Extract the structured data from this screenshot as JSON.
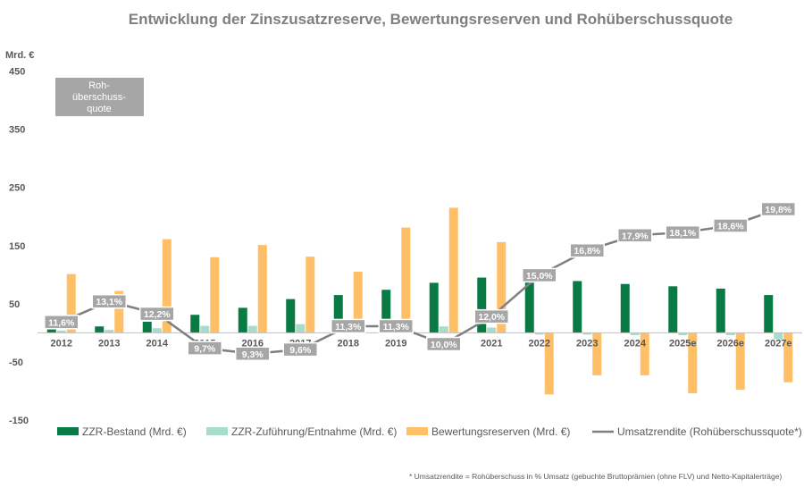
{
  "chart_data": {
    "type": "bar",
    "title": "Entwicklung der Zinszusatzreserve, Bewertungsreserven und Rohüberschussquote",
    "y_unit": "Mrd. €",
    "ylim": [
      -150,
      480
    ],
    "yticks": [
      -150,
      -50,
      50,
      150,
      250,
      350,
      450
    ],
    "categories": [
      "2012",
      "2013",
      "2014",
      "2015",
      "2016",
      "2017",
      "2018",
      "2019",
      "2020",
      "2021",
      "2022",
      "2023",
      "2024",
      "2025e",
      "2026e",
      "2027e"
    ],
    "series": [
      {
        "name": "ZZR-Bestand (Mrd. €)",
        "kind": "bar",
        "color": "#0a7a45",
        "values": [
          6,
          11,
          19,
          31,
          43,
          58,
          65,
          74,
          86,
          95,
          92,
          89,
          84,
          80,
          76,
          65
        ]
      },
      {
        "name": "ZZR-Zuführung/Entnahme (Mrd. €)",
        "kind": "bar",
        "color": "#a6dcc9",
        "values": [
          4,
          5,
          8,
          12,
          12,
          15,
          7,
          9,
          11,
          9,
          -3,
          -3,
          -4,
          -4,
          -4,
          -11
        ]
      },
      {
        "name": "Bewertungsreserven (Mrd. €)",
        "kind": "bar",
        "color": "#ffbf66",
        "values": [
          101,
          72,
          161,
          130,
          151,
          131,
          105,
          181,
          215,
          156,
          -106,
          -73,
          -73,
          -104,
          -98,
          -85
        ]
      },
      {
        "name": "Umsatzrendite (Rohüberschussquote*)",
        "kind": "line",
        "color": "#7f7f7f",
        "values": [
          11.6,
          13.1,
          12.2,
          9.7,
          9.3,
          9.6,
          11.3,
          11.3,
          10.0,
          12.0,
          15.0,
          16.8,
          17.9,
          18.1,
          18.6,
          19.8
        ],
        "labels": [
          "11,6%",
          "13,1%",
          "12,2%",
          "9,7%",
          "9,3%",
          "9,6%",
          "11,3%",
          "11,3%",
          "10,0%",
          "12,0%",
          "15,0%",
          "16,8%",
          "17,9%",
          "18,1%",
          "18,6%",
          "19,8%"
        ]
      }
    ],
    "annotation": "Roh-\nüberschuss-\nquote",
    "footnote": "* Umsatzrendite = Rohüberschuss in % Umsatz (gebuchte Bruttoprämien (ohne FLV) und Netto-Kapitalerträge)",
    "legend_position": "bottom",
    "grid": false
  }
}
